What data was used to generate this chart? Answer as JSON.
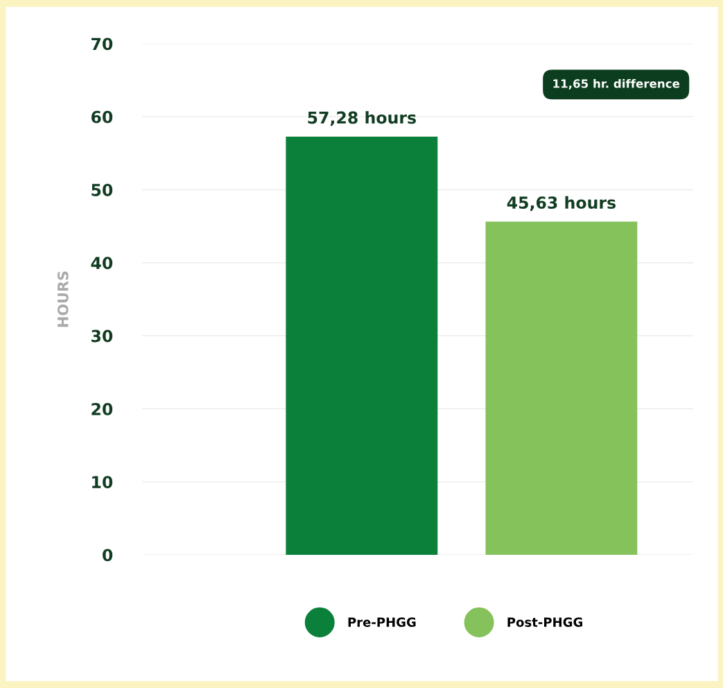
{
  "chart_data": {
    "type": "bar",
    "ylabel": "HOURS",
    "categories": [
      null,
      null
    ],
    "series": [
      {
        "name": "Pre-PHGG",
        "color": "#0a803a",
        "values": [
          57.28,
          null
        ],
        "value_labels": [
          "57,28 hours",
          null
        ]
      },
      {
        "name": "Post-PHGG",
        "color": "#86c25c",
        "values": [
          null,
          45.63
        ],
        "value_labels": [
          null,
          "45,63 hours"
        ]
      }
    ],
    "annotations": [
      "11,65 hr. difference"
    ],
    "ylim": [
      0,
      70
    ],
    "yticks": [
      0,
      10,
      20,
      30,
      40,
      50,
      60,
      70
    ],
    "grid": "y",
    "legend": "bottom"
  }
}
